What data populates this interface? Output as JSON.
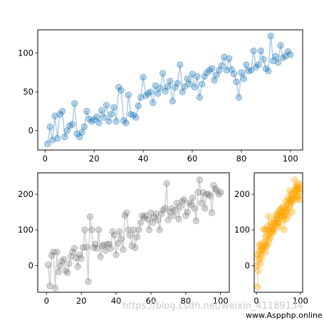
{
  "chart_data": [
    {
      "type": "line",
      "color": "#1f77b4",
      "xlim": [
        -3,
        105
      ],
      "ylim": [
        -25,
        130
      ],
      "xticks": [
        0,
        20,
        40,
        60,
        80,
        100
      ],
      "yticks": [
        0,
        50,
        100
      ],
      "series": [
        {
          "x": [
            1,
            2,
            3,
            4,
            5,
            6,
            7,
            8,
            9,
            10,
            11,
            12,
            13,
            14,
            15,
            16,
            17,
            18,
            19,
            20,
            21,
            22,
            23,
            24,
            25,
            26,
            27,
            28,
            29,
            30,
            31,
            32,
            33,
            34,
            35,
            36,
            37,
            38,
            39,
            40,
            41,
            42,
            43,
            44,
            45,
            46,
            47,
            48,
            49,
            50,
            51,
            52,
            53,
            54,
            55,
            56,
            57,
            58,
            59,
            60,
            61,
            62,
            63,
            64,
            65,
            66,
            67,
            68,
            69,
            70,
            71,
            72,
            73,
            74,
            75,
            76,
            77,
            78,
            79,
            80,
            81,
            82,
            83,
            84,
            85,
            86,
            87,
            88,
            89,
            90,
            91,
            92,
            93,
            94,
            95,
            96,
            97,
            98,
            99,
            100
          ],
          "y": [
            -17,
            5,
            -12,
            19,
            -10,
            21,
            25,
            -8,
            0,
            6,
            8,
            35,
            -4,
            -8,
            -2,
            5,
            25,
            15,
            12,
            14,
            18,
            10,
            26,
            17,
            33,
            12,
            21,
            30,
            12,
            56,
            52,
            13,
            10,
            46,
            21,
            20,
            17,
            32,
            43,
            69,
            45,
            48,
            50,
            36,
            58,
            48,
            55,
            74,
            51,
            57,
            64,
            38,
            56,
            61,
            85,
            50,
            57,
            67,
            60,
            73,
            56,
            70,
            43,
            60,
            70,
            75,
            78,
            80,
            65,
            72,
            78,
            84,
            95,
            78,
            93,
            79,
            73,
            63,
            43,
            75,
            67,
            85,
            77,
            78,
            103,
            82,
            85,
            103,
            92,
            80,
            77,
            122,
            90,
            96,
            88,
            110,
            94,
            96,
            102,
            98
          ]
        }
      ]
    },
    {
      "type": "line",
      "color": "#808080",
      "xlim": [
        -5,
        105
      ],
      "ylim": [
        -75,
        260
      ],
      "xticks": [
        0,
        20,
        40,
        60,
        80,
        100
      ],
      "yticks": [
        0,
        100,
        200
      ],
      "series": [
        {
          "x": [
            1,
            2,
            3,
            4,
            5,
            6,
            7,
            8,
            9,
            10,
            11,
            12,
            13,
            14,
            15,
            16,
            17,
            18,
            19,
            20,
            21,
            22,
            23,
            24,
            25,
            26,
            27,
            28,
            29,
            30,
            31,
            32,
            33,
            34,
            35,
            36,
            37,
            38,
            39,
            40,
            41,
            42,
            43,
            44,
            45,
            46,
            47,
            48,
            49,
            50,
            51,
            52,
            53,
            54,
            55,
            56,
            57,
            58,
            59,
            60,
            61,
            62,
            63,
            64,
            65,
            66,
            67,
            68,
            69,
            70,
            71,
            72,
            73,
            74,
            75,
            76,
            77,
            78,
            79,
            80,
            81,
            82,
            83,
            84,
            85,
            86,
            87,
            88,
            89,
            90,
            91,
            92,
            93,
            94,
            95,
            96,
            97,
            98,
            99,
            100
          ],
          "y": [
            2,
            -57,
            28,
            38,
            -63,
            38,
            -18,
            0,
            12,
            18,
            -15,
            -20,
            5,
            25,
            38,
            48,
            22,
            -3,
            30,
            20,
            50,
            100,
            52,
            -45,
            137,
            100,
            50,
            60,
            48,
            100,
            25,
            55,
            58,
            42,
            60,
            60,
            48,
            95,
            85,
            30,
            62,
            95,
            75,
            45,
            140,
            148,
            100,
            85,
            55,
            100,
            50,
            80,
            100,
            120,
            140,
            135,
            140,
            130,
            100,
            148,
            120,
            135,
            145,
            128,
            100,
            145,
            155,
            160,
            230,
            128,
            150,
            160,
            140,
            155,
            175,
            130,
            165,
            180,
            185,
            140,
            150,
            175,
            170,
            190,
            160,
            125,
            205,
            240,
            175,
            205,
            160,
            200,
            200,
            195,
            148,
            225,
            215,
            210,
            200,
            205
          ]
        }
      ]
    },
    {
      "type": "line",
      "color": "#ffa500",
      "xlim": [
        -5,
        105
      ],
      "ylim": [
        -75,
        260
      ],
      "xticks": [
        0,
        100
      ],
      "yticks": [
        0,
        100,
        200
      ],
      "series": [
        {
          "x": [
            1,
            2,
            3,
            4,
            5,
            6,
            7,
            8,
            9,
            10,
            11,
            12,
            13,
            14,
            15,
            16,
            17,
            18,
            19,
            20,
            21,
            22,
            23,
            24,
            25,
            26,
            27,
            28,
            29,
            30,
            31,
            32,
            33,
            34,
            35,
            36,
            37,
            38,
            39,
            40,
            41,
            42,
            43,
            44,
            45,
            46,
            47,
            48,
            49,
            50,
            51,
            52,
            53,
            54,
            55,
            56,
            57,
            58,
            59,
            60,
            61,
            62,
            63,
            64,
            65,
            66,
            67,
            68,
            69,
            70,
            71,
            72,
            73,
            74,
            75,
            76,
            77,
            78,
            79,
            80,
            81,
            82,
            83,
            84,
            85,
            86,
            87,
            88,
            89,
            90,
            91,
            92,
            93,
            94,
            95,
            96,
            97,
            98,
            99,
            100
          ],
          "y": [
            0,
            30,
            -60,
            -15,
            18,
            40,
            55,
            60,
            5,
            30,
            45,
            22,
            48,
            42,
            55,
            65,
            102,
            100,
            52,
            60,
            38,
            80,
            55,
            100,
            110,
            60,
            85,
            138,
            72,
            100,
            90,
            78,
            120,
            98,
            92,
            110,
            100,
            118,
            102,
            95,
            128,
            120,
            140,
            110,
            115,
            125,
            132,
            145,
            120,
            150,
            140,
            122,
            108,
            155,
            138,
            160,
            148,
            135,
            140,
            165,
            150,
            128,
            100,
            140,
            160,
            180,
            150,
            130,
            155,
            172,
            160,
            190,
            140,
            182,
            168,
            210,
            180,
            200,
            175,
            190,
            150,
            188,
            180,
            205,
            200,
            190,
            240,
            212,
            220,
            198,
            210,
            185,
            225,
            215,
            192,
            220,
            230,
            205,
            185,
            215
          ]
        }
      ]
    }
  ],
  "watermark": {
    "text": "https://blog.csdn.net/weixin_41189134",
    "badge": "www.Aspphp.online"
  }
}
